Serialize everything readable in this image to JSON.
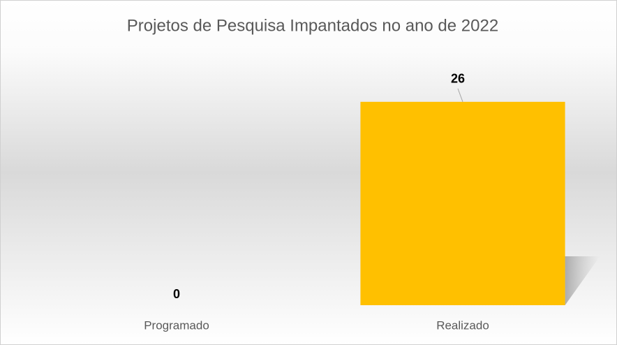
{
  "chart_data": {
    "type": "bar",
    "title": "Projetos de Pesquisa Impantados no ano de 2022",
    "categories": [
      "Programado",
      "Realizado"
    ],
    "values": [
      0,
      26
    ],
    "color": "#ffc000",
    "ylim": [
      0,
      30
    ]
  }
}
